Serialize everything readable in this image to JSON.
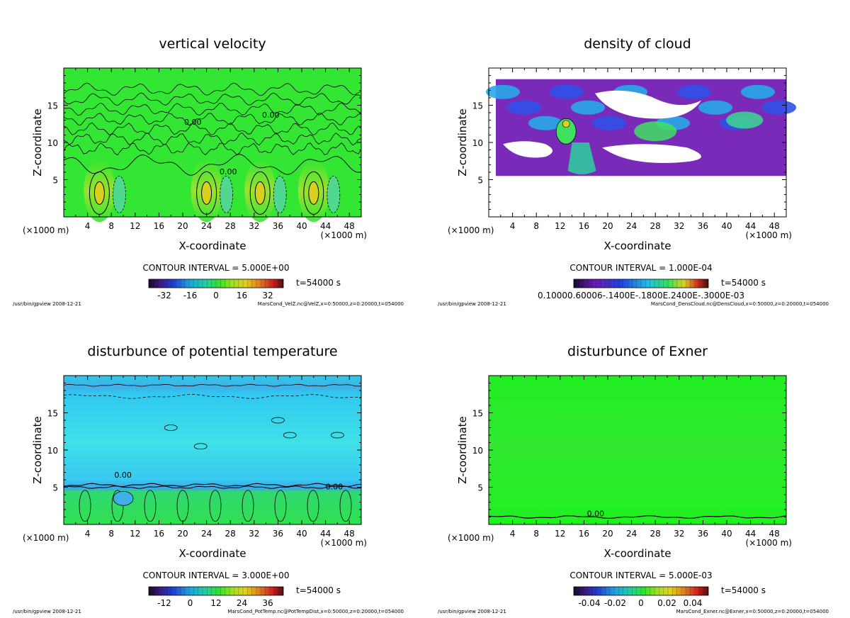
{
  "chart_data": [
    {
      "type": "heatmap",
      "title": "vertical velocity",
      "xlabel": "X-coordinate",
      "ylabel": "Z-coordinate",
      "x_unit": "(×1000 m)",
      "x_ticks": [
        "4",
        "8",
        "12",
        "16",
        "20",
        "24",
        "28",
        "32",
        "36",
        "40",
        "44",
        "48"
      ],
      "y_ticks": [
        "5",
        "10",
        "15"
      ],
      "xlim": [
        0,
        50
      ],
      "ylim": [
        0,
        20
      ],
      "grid": false,
      "contour_interval": "CONTOUR INTERVAL = 5.000E+00",
      "time_label": "t=54000 s",
      "colorbar_ticks": [
        "-32",
        "-16",
        "0",
        "16",
        "32"
      ],
      "contour_labels": [
        "0.00",
        "0.00",
        "0.00"
      ],
      "footer_left": "/usr/bin/gpview  2008-12-21",
      "footer_right": "MarsCond_VelZ.nc@VelZ,x=0:50000,z=0:20000,t=054000",
      "background_color": "#33e633",
      "updraft_cores_x": [
        6,
        24,
        33,
        42
      ],
      "colorbar_ramp": "rainbow"
    },
    {
      "type": "heatmap",
      "title": "density of cloud",
      "xlabel": "X-coordinate",
      "ylabel": "Z-coordinate",
      "x_unit": "(×1000 m)",
      "x_ticks": [
        "4",
        "8",
        "12",
        "16",
        "20",
        "24",
        "28",
        "32",
        "36",
        "40",
        "44",
        "48"
      ],
      "y_ticks": [
        "5",
        "10",
        "15"
      ],
      "xlim": [
        0,
        50
      ],
      "ylim": [
        0,
        20
      ],
      "grid": false,
      "contour_interval": "CONTOUR INTERVAL = 1.000E-04",
      "time_label": "t=54000 s",
      "colorbar_ticks": [
        "0.10000.60006-.1400E-.1800E.2400E-.3000E-03"
      ],
      "footer_left": "/usr/bin/gpview  2008-12-21",
      "footer_right": "MarsCond_DensCloud.nc@DensCloud,x=0:50000,z=0:20000,t=054000",
      "cloud_layer_z": [
        5.5,
        18.5
      ],
      "colorbar_ramp": "violet-blue-cyan"
    },
    {
      "type": "heatmap",
      "title": "disturbunce of potential temperature",
      "xlabel": "X-coordinate",
      "ylabel": "Z-coordinate",
      "x_unit": "(×1000 m)",
      "x_ticks": [
        "4",
        "8",
        "12",
        "16",
        "20",
        "24",
        "28",
        "32",
        "36",
        "40",
        "44",
        "48"
      ],
      "y_ticks": [
        "5",
        "10",
        "15"
      ],
      "xlim": [
        0,
        50
      ],
      "ylim": [
        0,
        20
      ],
      "grid": false,
      "contour_interval": "CONTOUR INTERVAL = 3.000E+00",
      "time_label": "t=54000 s",
      "colorbar_ticks": [
        "-12",
        "0",
        "12",
        "24",
        "36"
      ],
      "contour_labels": [
        "0.00",
        "0.00"
      ],
      "footer_left": "/usr/bin/gpview  2008-12-21",
      "footer_right": "MarsCond_PotTemp.nc@PotTempDist,x=0:50000,z=0:20000,t=054000",
      "colorbar_ramp": "rainbow"
    },
    {
      "type": "heatmap",
      "title": "disturbunce of Exner",
      "xlabel": "X-coordinate",
      "ylabel": "Z-coordinate",
      "x_unit": "(×1000 m)",
      "x_ticks": [
        "4",
        "8",
        "12",
        "16",
        "20",
        "24",
        "28",
        "32",
        "36",
        "40",
        "44",
        "48"
      ],
      "y_ticks": [
        "5",
        "10",
        "15"
      ],
      "xlim": [
        0,
        50
      ],
      "ylim": [
        0,
        20
      ],
      "grid": false,
      "contour_interval": "CONTOUR INTERVAL = 5.000E-03",
      "time_label": "t=54000 s",
      "colorbar_ticks": [
        "-0.04",
        "-0.02",
        "0",
        "0.02",
        "0.04"
      ],
      "contour_labels": [
        "0.00"
      ],
      "footer_left": "/usr/bin/gpview  2008-12-21",
      "footer_right": "MarsCond_Exner.nc@Exner,x=0:50000,z=0:20000,t=054000",
      "background_color": "#22ee22",
      "colorbar_ramp": "rainbow"
    }
  ]
}
